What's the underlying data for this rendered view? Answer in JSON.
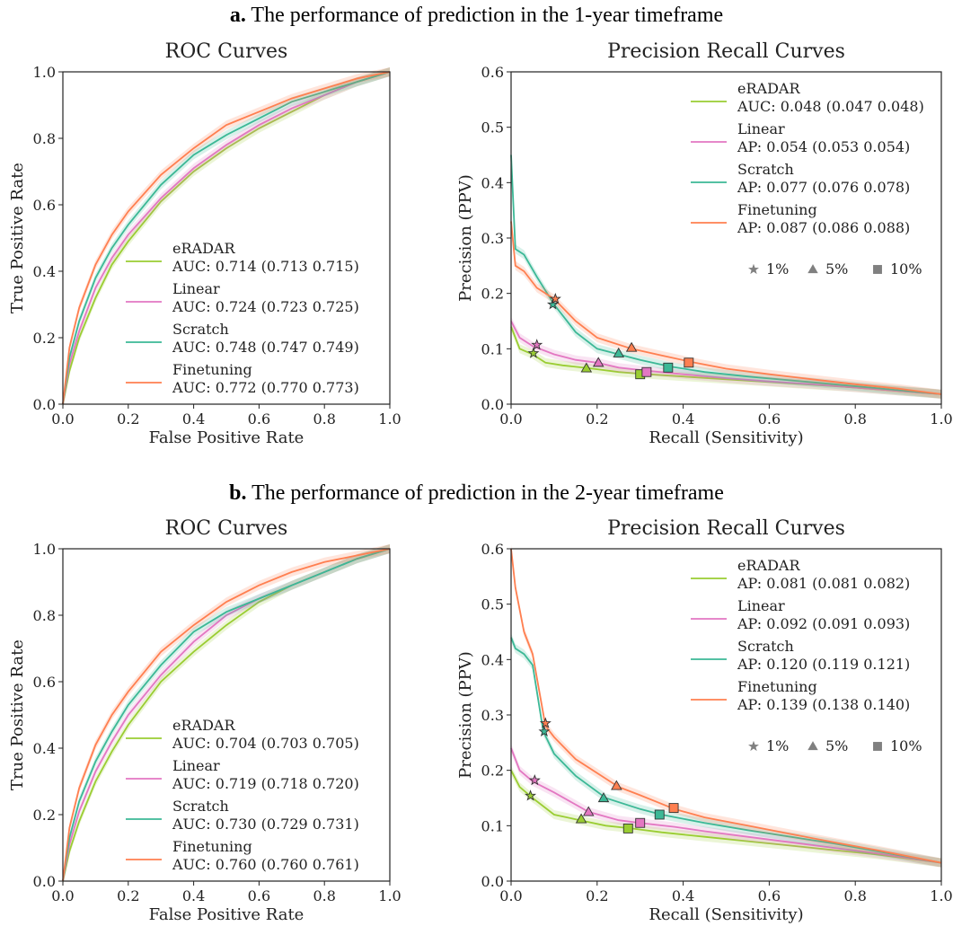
{
  "panels": [
    {
      "letter": "a.",
      "title": "The performance of prediction in the 1-year timeframe",
      "roc": {
        "title": "ROC Curves",
        "xlabel": "False Positive Rate",
        "ylabel": "True Positive Rate",
        "xticks": [
          "0.0",
          "0.2",
          "0.4",
          "0.6",
          "0.8",
          "1.0"
        ],
        "yticks": [
          "0.0",
          "0.2",
          "0.4",
          "0.6",
          "0.8",
          "1.0"
        ],
        "legend": [
          {
            "name": "eRADAR",
            "metric": " AUC: 0.714 (0.713 0.715)"
          },
          {
            "name": "Linear",
            "metric": " AUC: 0.724 (0.723 0.725)"
          },
          {
            "name": "Scratch",
            "metric": " AUC: 0.748 (0.747 0.749)"
          },
          {
            "name": "Finetuning",
            "metric": " AUC: 0.772 (0.770 0.773)"
          }
        ]
      },
      "pr": {
        "title": "Precision Recall Curves",
        "xlabel": "Recall (Sensitivity)",
        "ylabel": "Precision (PPV)",
        "xticks": [
          "0.0",
          "0.2",
          "0.4",
          "0.6",
          "0.8",
          "1.0"
        ],
        "yticks": [
          "0.0",
          "0.1",
          "0.2",
          "0.3",
          "0.4",
          "0.5",
          "0.6"
        ],
        "legend": [
          {
            "name": "eRADAR",
            "metric": " AUC: 0.048 (0.047 0.048)"
          },
          {
            "name": "Linear",
            "metric": " AP: 0.054 (0.053 0.054)"
          },
          {
            "name": "Scratch",
            "metric": " AP: 0.077 (0.076 0.078)"
          },
          {
            "name": "Finetuning",
            "metric": " AP: 0.087 (0.086 0.088)"
          }
        ],
        "markers": [
          {
            "label": "1%"
          },
          {
            "label": "5%"
          },
          {
            "label": "10%"
          }
        ]
      }
    },
    {
      "letter": "b.",
      "title": "The performance of prediction in the 2-year timeframe",
      "roc": {
        "title": "ROC Curves",
        "xlabel": "False Positive Rate",
        "ylabel": "True Positive Rate",
        "xticks": [
          "0.0",
          "0.2",
          "0.4",
          "0.6",
          "0.8",
          "1.0"
        ],
        "yticks": [
          "0.0",
          "0.2",
          "0.4",
          "0.6",
          "0.8",
          "1.0"
        ],
        "legend": [
          {
            "name": "eRADAR",
            "metric": " AUC: 0.704 (0.703 0.705)"
          },
          {
            "name": "Linear",
            "metric": " AUC: 0.719 (0.718 0.720)"
          },
          {
            "name": "Scratch",
            "metric": " AUC: 0.730 (0.729 0.731)"
          },
          {
            "name": "Finetuning",
            "metric": " AUC: 0.760 (0.760 0.761)"
          }
        ]
      },
      "pr": {
        "title": "Precision Recall Curves",
        "xlabel": "Recall (Sensitivity)",
        "ylabel": "Precision (PPV)",
        "xticks": [
          "0.0",
          "0.2",
          "0.4",
          "0.6",
          "0.8",
          "1.0"
        ],
        "yticks": [
          "0.0",
          "0.1",
          "0.2",
          "0.3",
          "0.4",
          "0.5",
          "0.6"
        ],
        "legend": [
          {
            "name": "eRADAR",
            "metric": " AP: 0.081 (0.081 0.082)"
          },
          {
            "name": "Linear",
            "metric": " AP: 0.092 (0.091 0.093)"
          },
          {
            "name": "Scratch",
            "metric": " AP: 0.120 (0.119 0.121)"
          },
          {
            "name": "Finetuning",
            "metric": " AP: 0.139 (0.138 0.140)"
          }
        ],
        "markers": [
          {
            "label": "1%"
          },
          {
            "label": "5%"
          },
          {
            "label": "10%"
          }
        ]
      }
    }
  ],
  "colors": {
    "eRADAR": "#9acd32",
    "Linear": "#e377c2",
    "Scratch": "#3cb896",
    "Finetuning": "#ff7f50",
    "marker_legend": "#808080"
  },
  "chart_data": [
    {
      "type": "line",
      "panel": "a",
      "title": "ROC Curves",
      "xlabel": "False Positive Rate",
      "ylabel": "True Positive Rate",
      "xlim": [
        0,
        1
      ],
      "ylim": [
        0,
        1
      ],
      "series": [
        {
          "name": "eRADAR",
          "x": [
            0,
            0.02,
            0.05,
            0.1,
            0.15,
            0.2,
            0.3,
            0.4,
            0.5,
            0.6,
            0.7,
            0.8,
            0.9,
            1.0
          ],
          "y": [
            0,
            0.1,
            0.2,
            0.32,
            0.42,
            0.49,
            0.61,
            0.7,
            0.77,
            0.83,
            0.88,
            0.93,
            0.97,
            1.0
          ]
        },
        {
          "name": "Linear",
          "x": [
            0,
            0.02,
            0.05,
            0.1,
            0.15,
            0.2,
            0.3,
            0.4,
            0.5,
            0.6,
            0.7,
            0.8,
            0.9,
            1.0
          ],
          "y": [
            0,
            0.12,
            0.22,
            0.35,
            0.44,
            0.51,
            0.62,
            0.71,
            0.78,
            0.84,
            0.89,
            0.93,
            0.97,
            1.0
          ]
        },
        {
          "name": "Scratch",
          "x": [
            0,
            0.02,
            0.05,
            0.1,
            0.15,
            0.2,
            0.3,
            0.4,
            0.5,
            0.6,
            0.7,
            0.8,
            0.9,
            1.0
          ],
          "y": [
            0,
            0.14,
            0.25,
            0.38,
            0.47,
            0.54,
            0.66,
            0.75,
            0.81,
            0.86,
            0.91,
            0.94,
            0.97,
            1.0
          ]
        },
        {
          "name": "Finetuning",
          "x": [
            0,
            0.02,
            0.05,
            0.1,
            0.15,
            0.2,
            0.3,
            0.4,
            0.5,
            0.6,
            0.7,
            0.8,
            0.9,
            1.0
          ],
          "y": [
            0,
            0.17,
            0.29,
            0.42,
            0.51,
            0.58,
            0.69,
            0.77,
            0.84,
            0.88,
            0.92,
            0.95,
            0.98,
            1.0
          ]
        }
      ]
    },
    {
      "type": "line",
      "panel": "a",
      "title": "Precision Recall Curves",
      "xlabel": "Recall (Sensitivity)",
      "ylabel": "Precision (PPV)",
      "xlim": [
        0,
        1
      ],
      "ylim": [
        0,
        0.6
      ],
      "series": [
        {
          "name": "eRADAR",
          "x": [
            0,
            0.02,
            0.05,
            0.08,
            0.12,
            0.18,
            0.25,
            0.3,
            0.4,
            0.5,
            0.6,
            0.7,
            0.8,
            0.9,
            1.0
          ],
          "y": [
            0.14,
            0.1,
            0.09,
            0.075,
            0.07,
            0.065,
            0.058,
            0.055,
            0.05,
            0.045,
            0.04,
            0.035,
            0.03,
            0.024,
            0.018
          ]
        },
        {
          "name": "Linear",
          "x": [
            0,
            0.02,
            0.05,
            0.1,
            0.15,
            0.2,
            0.25,
            0.32,
            0.4,
            0.5,
            0.6,
            0.7,
            0.8,
            0.9,
            1.0
          ],
          "y": [
            0.15,
            0.12,
            0.105,
            0.09,
            0.08,
            0.075,
            0.066,
            0.06,
            0.054,
            0.047,
            0.041,
            0.036,
            0.03,
            0.024,
            0.018
          ]
        },
        {
          "name": "Scratch",
          "x": [
            0,
            0.01,
            0.03,
            0.06,
            0.1,
            0.15,
            0.2,
            0.25,
            0.3,
            0.37,
            0.45,
            0.55,
            0.65,
            0.75,
            0.85,
            1.0
          ],
          "y": [
            0.45,
            0.28,
            0.27,
            0.23,
            0.18,
            0.13,
            0.1,
            0.09,
            0.08,
            0.068,
            0.058,
            0.05,
            0.043,
            0.036,
            0.029,
            0.018
          ]
        },
        {
          "name": "Finetuning",
          "x": [
            0,
            0.01,
            0.03,
            0.06,
            0.1,
            0.15,
            0.2,
            0.28,
            0.35,
            0.42,
            0.5,
            0.6,
            0.7,
            0.8,
            0.9,
            1.0
          ],
          "y": [
            0.33,
            0.25,
            0.24,
            0.21,
            0.19,
            0.15,
            0.12,
            0.1,
            0.088,
            0.076,
            0.064,
            0.054,
            0.045,
            0.036,
            0.028,
            0.018
          ]
        }
      ],
      "markers": [
        {
          "series": "eRADAR",
          "shape": "star",
          "x": 0.052,
          "y": 0.092
        },
        {
          "series": "Linear",
          "shape": "star",
          "x": 0.06,
          "y": 0.107
        },
        {
          "series": "Scratch",
          "shape": "star",
          "x": 0.097,
          "y": 0.18
        },
        {
          "series": "Finetuning",
          "shape": "star",
          "x": 0.103,
          "y": 0.19
        },
        {
          "series": "eRADAR",
          "shape": "triangle",
          "x": 0.175,
          "y": 0.065
        },
        {
          "series": "Linear",
          "shape": "triangle",
          "x": 0.203,
          "y": 0.075
        },
        {
          "series": "Scratch",
          "shape": "triangle",
          "x": 0.25,
          "y": 0.092
        },
        {
          "series": "Finetuning",
          "shape": "triangle",
          "x": 0.28,
          "y": 0.102
        },
        {
          "series": "eRADAR",
          "shape": "square",
          "x": 0.3,
          "y": 0.054
        },
        {
          "series": "Linear",
          "shape": "square",
          "x": 0.315,
          "y": 0.058
        },
        {
          "series": "Scratch",
          "shape": "square",
          "x": 0.365,
          "y": 0.066
        },
        {
          "series": "Finetuning",
          "shape": "square",
          "x": 0.413,
          "y": 0.075
        }
      ]
    },
    {
      "type": "line",
      "panel": "b",
      "title": "ROC Curves",
      "xlabel": "False Positive Rate",
      "ylabel": "True Positive Rate",
      "xlim": [
        0,
        1
      ],
      "ylim": [
        0,
        1
      ],
      "series": [
        {
          "name": "eRADAR",
          "x": [
            0,
            0.02,
            0.05,
            0.1,
            0.15,
            0.2,
            0.3,
            0.4,
            0.5,
            0.6,
            0.7,
            0.8,
            0.9,
            1.0
          ],
          "y": [
            0,
            0.09,
            0.18,
            0.3,
            0.39,
            0.47,
            0.6,
            0.69,
            0.77,
            0.84,
            0.89,
            0.93,
            0.97,
            1.0
          ]
        },
        {
          "name": "Linear",
          "x": [
            0,
            0.02,
            0.05,
            0.1,
            0.15,
            0.2,
            0.3,
            0.4,
            0.5,
            0.6,
            0.7,
            0.8,
            0.9,
            1.0
          ],
          "y": [
            0,
            0.11,
            0.21,
            0.33,
            0.42,
            0.5,
            0.62,
            0.72,
            0.8,
            0.85,
            0.89,
            0.93,
            0.97,
            1.0
          ]
        },
        {
          "name": "Scratch",
          "x": [
            0,
            0.02,
            0.05,
            0.1,
            0.15,
            0.2,
            0.3,
            0.4,
            0.5,
            0.6,
            0.7,
            0.8,
            0.9,
            1.0
          ],
          "y": [
            0,
            0.13,
            0.24,
            0.36,
            0.45,
            0.53,
            0.65,
            0.75,
            0.81,
            0.85,
            0.89,
            0.93,
            0.97,
            1.0
          ]
        },
        {
          "name": "Finetuning",
          "x": [
            0,
            0.02,
            0.05,
            0.1,
            0.15,
            0.2,
            0.3,
            0.4,
            0.5,
            0.6,
            0.7,
            0.8,
            0.9,
            1.0
          ],
          "y": [
            0,
            0.16,
            0.28,
            0.41,
            0.5,
            0.57,
            0.69,
            0.77,
            0.84,
            0.89,
            0.93,
            0.96,
            0.98,
            1.0
          ]
        }
      ]
    },
    {
      "type": "line",
      "panel": "b",
      "title": "Precision Recall Curves",
      "xlabel": "Recall (Sensitivity)",
      "ylabel": "Precision (PPV)",
      "xlim": [
        0,
        1
      ],
      "ylim": [
        0,
        0.6
      ],
      "series": [
        {
          "name": "eRADAR",
          "x": [
            0,
            0.02,
            0.05,
            0.1,
            0.16,
            0.22,
            0.28,
            0.35,
            0.45,
            0.55,
            0.65,
            0.75,
            0.85,
            1.0
          ],
          "y": [
            0.2,
            0.17,
            0.15,
            0.12,
            0.11,
            0.1,
            0.095,
            0.088,
            0.08,
            0.072,
            0.064,
            0.056,
            0.048,
            0.033
          ]
        },
        {
          "name": "Linear",
          "x": [
            0,
            0.02,
            0.05,
            0.1,
            0.18,
            0.25,
            0.3,
            0.38,
            0.45,
            0.55,
            0.65,
            0.75,
            0.85,
            1.0
          ],
          "y": [
            0.24,
            0.2,
            0.18,
            0.16,
            0.125,
            0.11,
            0.105,
            0.098,
            0.09,
            0.08,
            0.07,
            0.06,
            0.05,
            0.033
          ]
        },
        {
          "name": "Scratch",
          "x": [
            0,
            0.01,
            0.03,
            0.05,
            0.075,
            0.1,
            0.15,
            0.22,
            0.3,
            0.35,
            0.45,
            0.55,
            0.65,
            0.75,
            0.85,
            1.0
          ],
          "y": [
            0.44,
            0.42,
            0.41,
            0.39,
            0.27,
            0.23,
            0.19,
            0.15,
            0.13,
            0.12,
            0.105,
            0.092,
            0.08,
            0.068,
            0.054,
            0.033
          ]
        },
        {
          "name": "Finetuning",
          "x": [
            0,
            0.01,
            0.03,
            0.05,
            0.08,
            0.1,
            0.15,
            0.25,
            0.3,
            0.38,
            0.45,
            0.55,
            0.65,
            0.75,
            0.85,
            1.0
          ],
          "y": [
            0.6,
            0.53,
            0.45,
            0.41,
            0.28,
            0.26,
            0.22,
            0.17,
            0.155,
            0.13,
            0.115,
            0.1,
            0.085,
            0.07,
            0.056,
            0.033
          ]
        }
      ],
      "markers": [
        {
          "series": "eRADAR",
          "shape": "star",
          "x": 0.045,
          "y": 0.154
        },
        {
          "series": "Linear",
          "shape": "star",
          "x": 0.055,
          "y": 0.182
        },
        {
          "series": "Scratch",
          "shape": "star",
          "x": 0.077,
          "y": 0.27
        },
        {
          "series": "Finetuning",
          "shape": "star",
          "x": 0.08,
          "y": 0.285
        },
        {
          "series": "eRADAR",
          "shape": "triangle",
          "x": 0.163,
          "y": 0.112
        },
        {
          "series": "Linear",
          "shape": "triangle",
          "x": 0.18,
          "y": 0.125
        },
        {
          "series": "Scratch",
          "shape": "triangle",
          "x": 0.215,
          "y": 0.15
        },
        {
          "series": "Finetuning",
          "shape": "triangle",
          "x": 0.245,
          "y": 0.172
        },
        {
          "series": "eRADAR",
          "shape": "square",
          "x": 0.272,
          "y": 0.095
        },
        {
          "series": "Linear",
          "shape": "square",
          "x": 0.3,
          "y": 0.105
        },
        {
          "series": "Scratch",
          "shape": "square",
          "x": 0.345,
          "y": 0.12
        },
        {
          "series": "Finetuning",
          "shape": "square",
          "x": 0.378,
          "y": 0.132
        }
      ]
    }
  ]
}
